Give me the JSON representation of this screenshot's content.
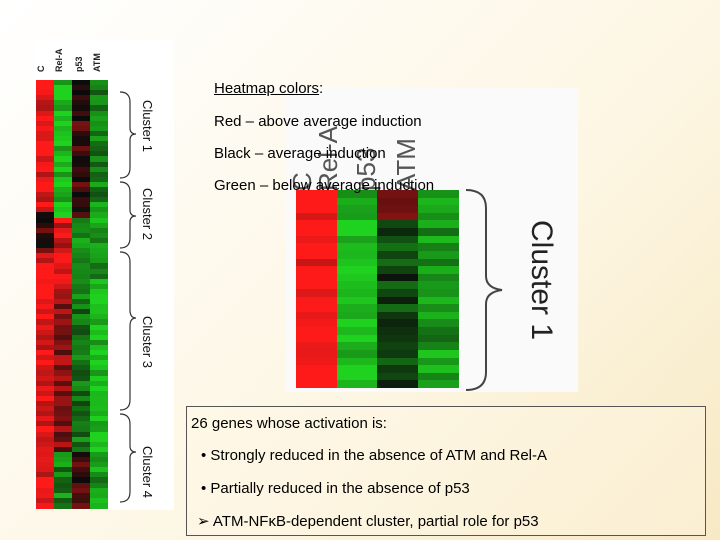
{
  "colors": {
    "red": "#ff1a1a",
    "green": "#1fd21f",
    "black": "#0a0a0a"
  },
  "legend": {
    "title": "Heatmap colors",
    "colon": ":",
    "red": "Red – above average induction",
    "black": "Black – average induction",
    "green": "Green – below average induction"
  },
  "small_heatmap": {
    "columns": [
      "C",
      "Rel-A",
      "p53",
      "ATM"
    ],
    "clusters": [
      "Cluster 1",
      "Cluster 2",
      "Cluster 3",
      "Cluster 4"
    ]
  },
  "zoom_heatmap": {
    "columns": [
      "C",
      "Rel-A",
      "p53",
      "ATM"
    ],
    "cluster": "Cluster 1"
  },
  "summary": {
    "heading": "26 genes whose activation is:",
    "bullet1": "• Strongly reduced in the absence of ATM and Rel-A",
    "bullet2": "• Partially reduced in the absence of p53",
    "conclusion": "➢ ATM-NFκB-dependent cluster, partial role for p53"
  }
}
